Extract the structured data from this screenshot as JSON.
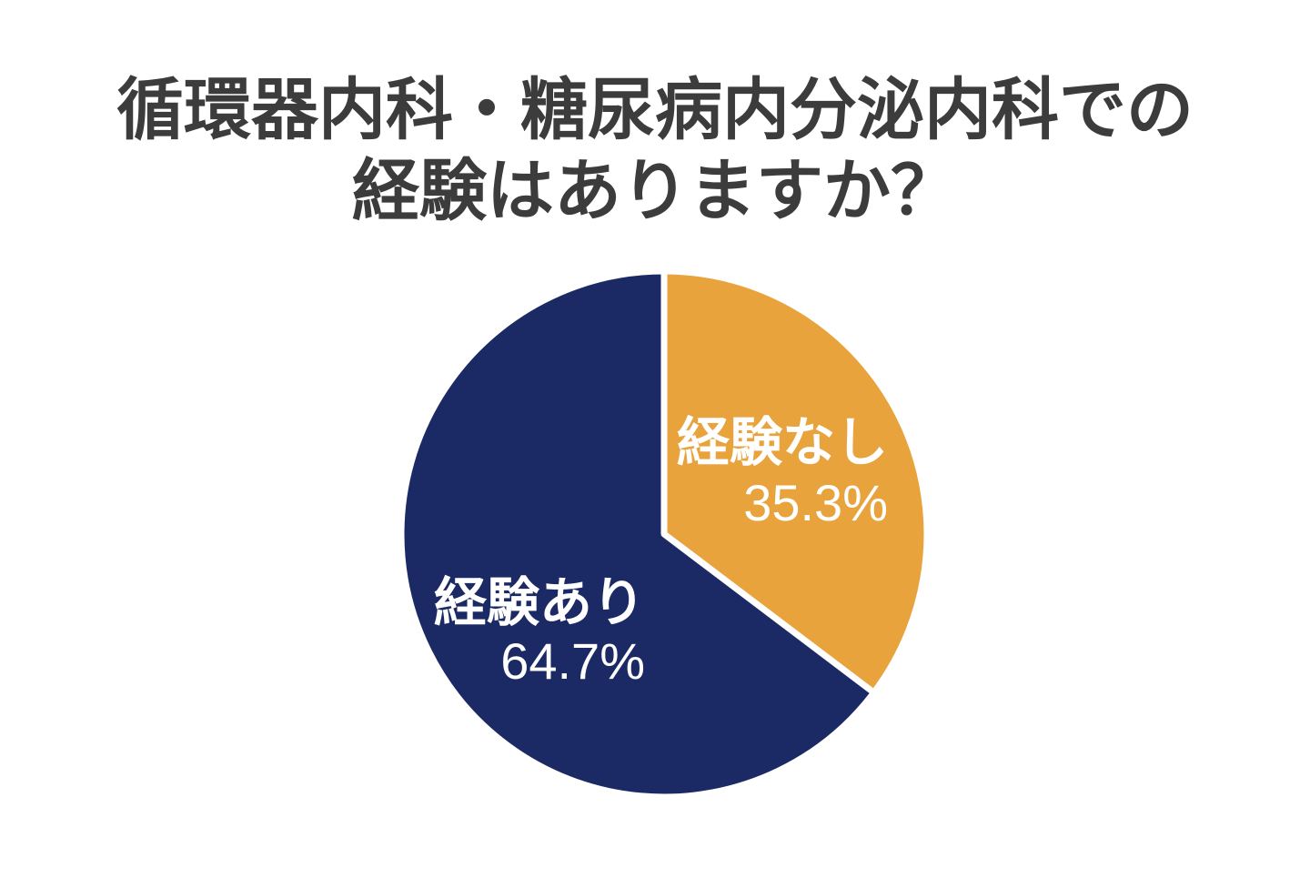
{
  "page": {
    "background_color": "#FFFFFF"
  },
  "chart_data": {
    "type": "pie",
    "title": "循環器内科・糖尿病内分泌内科での経験はありますか？",
    "title_lines": [
      "循環器内科・糖尿病内分泌内科での",
      "経験はありますか？"
    ],
    "title_color": "#3C3C3C",
    "legend_position": "none",
    "start_angle_deg": 0,
    "direction": "clockwise",
    "slice_border_color": "#FFFFFF",
    "label_color": "#FFFFFF",
    "slices": [
      {
        "label": "経験なし",
        "value": 35.3,
        "percent_label": "35.3%",
        "color": "#E8A33C"
      },
      {
        "label": "経験あり",
        "value": 64.7,
        "percent_label": "64.7%",
        "color": "#1B2A64"
      }
    ]
  }
}
